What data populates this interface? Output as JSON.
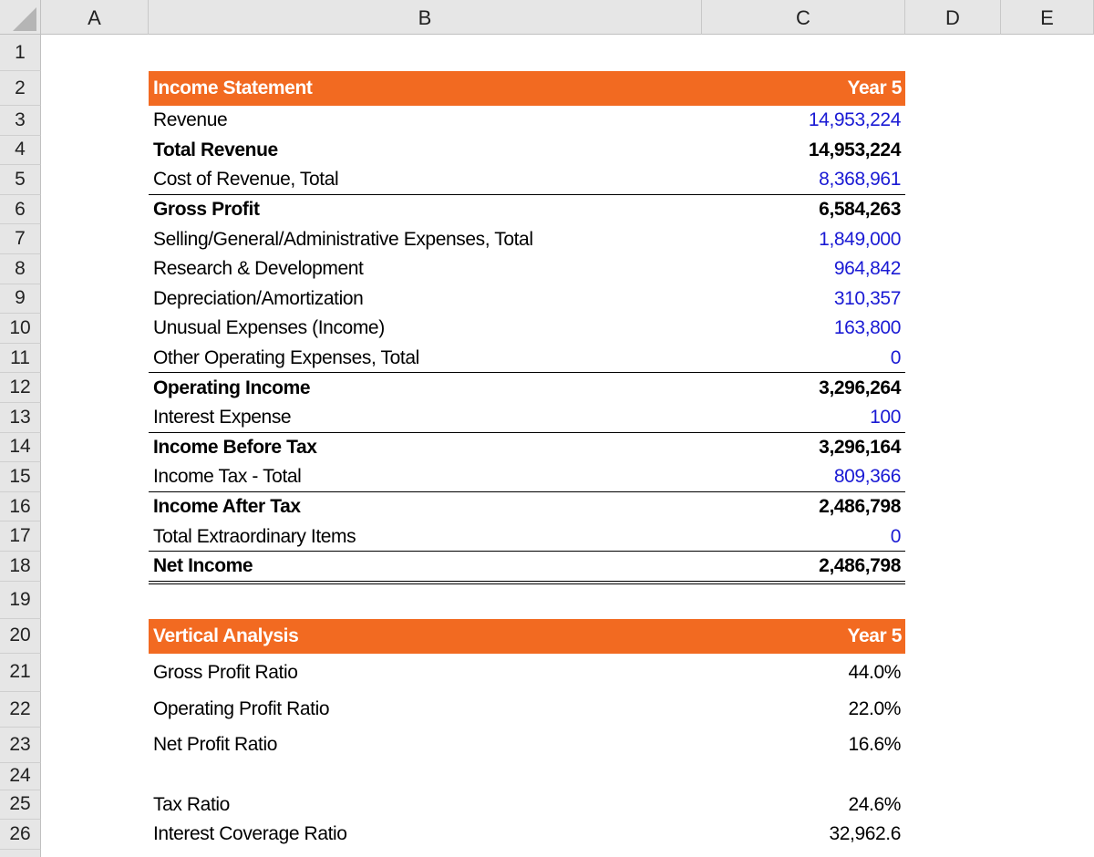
{
  "columns": [
    "A",
    "B",
    "C",
    "D",
    "E"
  ],
  "rows": [
    "1",
    "2",
    "3",
    "4",
    "5",
    "6",
    "7",
    "8",
    "9",
    "10",
    "11",
    "12",
    "13",
    "14",
    "15",
    "16",
    "17",
    "18",
    "19",
    "20",
    "21",
    "22",
    "23",
    "24",
    "25",
    "26"
  ],
  "income_statement": {
    "header": {
      "label": "Income Statement",
      "period": "Year 5"
    },
    "header_color": "#f26a21",
    "items": [
      {
        "label": "Revenue",
        "value": "14,953,224",
        "bold": false,
        "color": "#1a1ad4"
      },
      {
        "label": "Total Revenue",
        "value": "14,953,224",
        "bold": true,
        "color": "#000000"
      },
      {
        "label": "Cost of Revenue, Total",
        "value": "8,368,961",
        "bold": false,
        "color": "#1a1ad4",
        "border_below": "single"
      },
      {
        "label": "Gross Profit",
        "value": "6,584,263",
        "bold": true,
        "color": "#000000"
      },
      {
        "label": "Selling/General/Administrative Expenses, Total",
        "value": "1,849,000",
        "bold": false,
        "color": "#1a1ad4"
      },
      {
        "label": "Research & Development",
        "value": "964,842",
        "bold": false,
        "color": "#1a1ad4"
      },
      {
        "label": "Depreciation/Amortization",
        "value": "310,357",
        "bold": false,
        "color": "#1a1ad4"
      },
      {
        "label": "Unusual Expenses (Income)",
        "value": "163,800",
        "bold": false,
        "color": "#1a1ad4"
      },
      {
        "label": "Other Operating Expenses, Total",
        "value": "0",
        "bold": false,
        "color": "#1a1ad4",
        "border_below": "single"
      },
      {
        "label": "Operating Income",
        "value": "3,296,264",
        "bold": true,
        "color": "#000000"
      },
      {
        "label": "Interest Expense",
        "value": "100",
        "bold": false,
        "color": "#1a1ad4",
        "border_below": "single"
      },
      {
        "label": "Income Before Tax",
        "value": "3,296,164",
        "bold": true,
        "color": "#000000"
      },
      {
        "label": "Income Tax - Total",
        "value": "809,366",
        "bold": false,
        "color": "#1a1ad4",
        "border_below": "single"
      },
      {
        "label": "Income After Tax",
        "value": "2,486,798",
        "bold": true,
        "color": "#000000"
      },
      {
        "label": "Total Extraordinary Items",
        "value": "0",
        "bold": false,
        "color": "#1a1ad4",
        "border_below": "single"
      },
      {
        "label": "Net Income",
        "value": "2,486,798",
        "bold": true,
        "color": "#000000",
        "border_below": "double"
      }
    ]
  },
  "vertical_analysis": {
    "header": {
      "label": "Vertical Analysis",
      "period": "Year 5"
    },
    "header_color": "#f26a21",
    "items": [
      {
        "label": "Gross Profit Ratio",
        "value": "44.0%"
      },
      {
        "label": "Operating Profit Ratio",
        "value": "22.0%"
      },
      {
        "label": "Net Profit Ratio",
        "value": "16.6%"
      },
      {
        "label": "Tax Ratio",
        "value": "24.6%"
      },
      {
        "label": "Interest Coverage Ratio",
        "value": "32,962.6"
      }
    ]
  }
}
